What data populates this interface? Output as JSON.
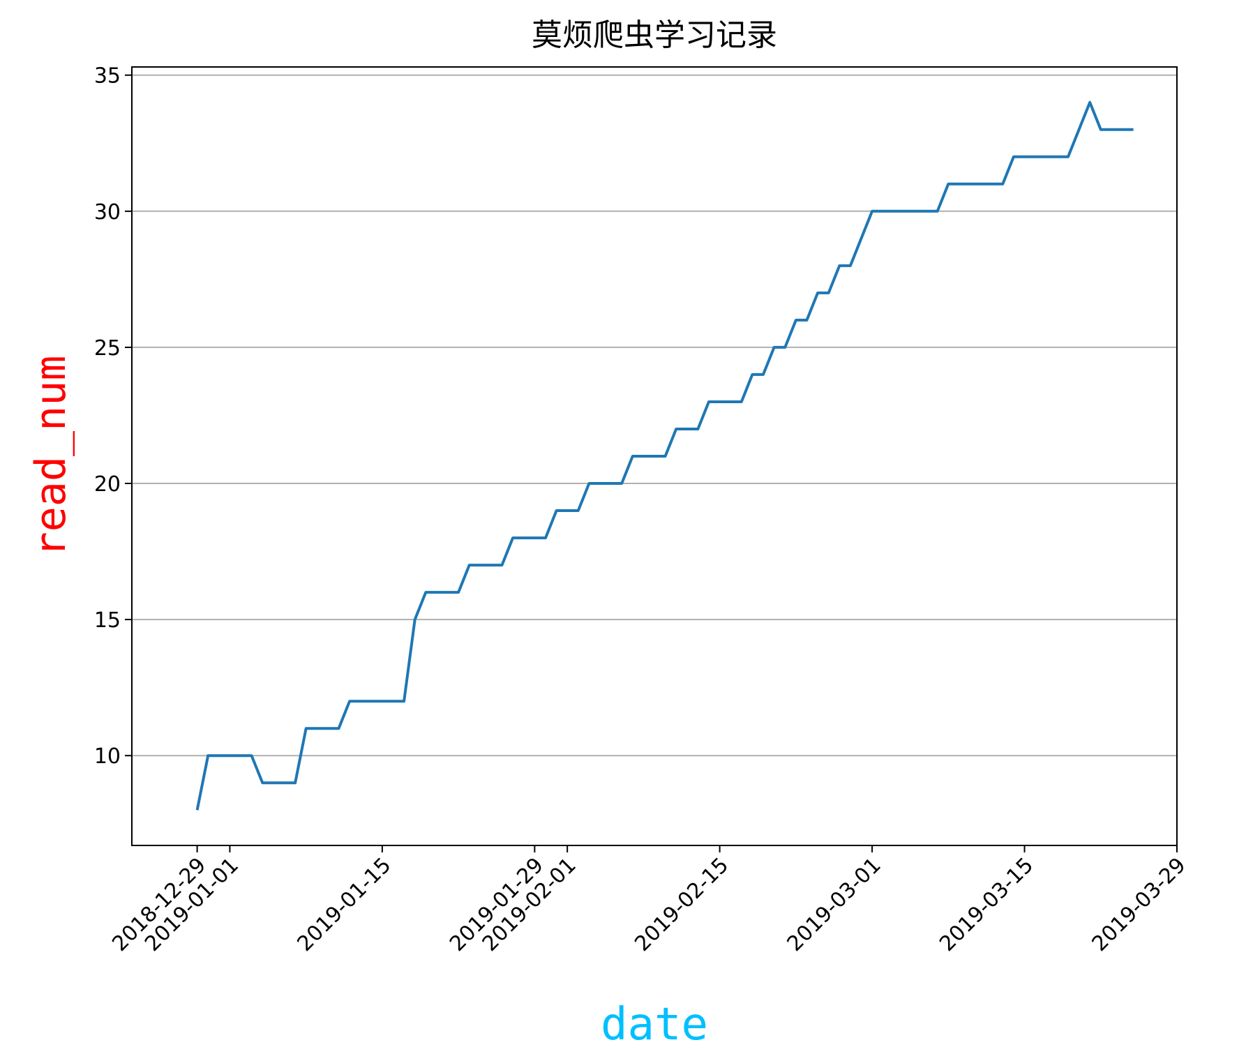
{
  "chart_data": {
    "type": "line",
    "title": "莫烦爬虫学习记录",
    "xlabel": "date",
    "ylabel": "read_num",
    "xlabel_color": "#00bfff",
    "ylabel_color": "#ff0000",
    "line_color": "#1f77b4",
    "grid": "horizontal",
    "xlim": [
      "2018-12-23",
      "2019-03-29"
    ],
    "ylim": [
      6.7,
      35.3
    ],
    "xticks": [
      "2018-12-29",
      "2019-01-01",
      "2019-01-15",
      "2019-01-29",
      "2019-02-01",
      "2019-02-15",
      "2019-03-01",
      "2019-03-15",
      "2019-03-29"
    ],
    "yticks": [
      10,
      15,
      20,
      25,
      30,
      35
    ],
    "series": [
      {
        "x": [
          "2018-12-29",
          "2018-12-30",
          "2019-01-03",
          "2019-01-04",
          "2019-01-07",
          "2019-01-08",
          "2019-01-11",
          "2019-01-12",
          "2019-01-17",
          "2019-01-18",
          "2019-01-19",
          "2019-01-22",
          "2019-01-23",
          "2019-01-26",
          "2019-01-27",
          "2019-01-30",
          "2019-01-31",
          "2019-02-02",
          "2019-02-03",
          "2019-02-06",
          "2019-02-07",
          "2019-02-10",
          "2019-02-11",
          "2019-02-13",
          "2019-02-14",
          "2019-02-17",
          "2019-02-18",
          "2019-02-19",
          "2019-02-20",
          "2019-02-21",
          "2019-02-22",
          "2019-02-23",
          "2019-02-24",
          "2019-02-25",
          "2019-02-26",
          "2019-02-27",
          "2019-03-01",
          "2019-03-07",
          "2019-03-08",
          "2019-03-13",
          "2019-03-14",
          "2019-03-19",
          "2019-03-21",
          "2019-03-22",
          "2019-03-25"
        ],
        "y": [
          8,
          10,
          10,
          9,
          9,
          11,
          11,
          12,
          12,
          15,
          16,
          16,
          17,
          17,
          18,
          18,
          19,
          19,
          20,
          20,
          21,
          21,
          22,
          22,
          23,
          23,
          24,
          24,
          25,
          25,
          26,
          26,
          27,
          27,
          28,
          28,
          30,
          30,
          31,
          31,
          32,
          32,
          34,
          33,
          33
        ]
      }
    ]
  }
}
